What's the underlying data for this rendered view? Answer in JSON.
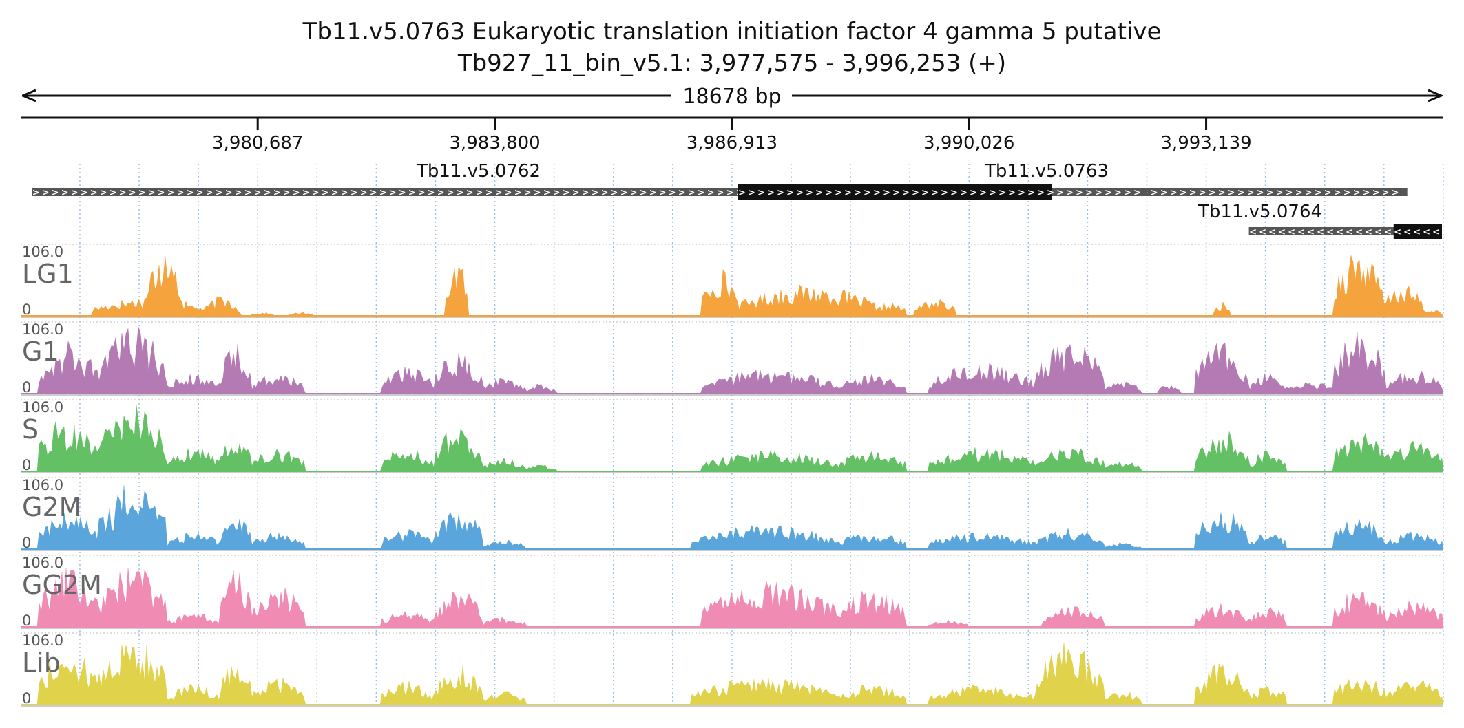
{
  "header": {
    "title": "Tb11.v5.0763  Eukaryotic translation initiation factor 4 gamma 5  putative",
    "region": "Tb927_11_bin_v5.1: 3,977,575 - 3,996,253 (+)",
    "span_label": "18678 bp"
  },
  "chart_data": {
    "type": "area",
    "x_range": [
      3977575,
      3996253
    ],
    "ticks": [
      {
        "pos": 3980687,
        "label": "3,980,687"
      },
      {
        "pos": 3983800,
        "label": "3,983,800"
      },
      {
        "pos": 3986913,
        "label": "3,986,913"
      },
      {
        "pos": 3990026,
        "label": "3,990,026"
      },
      {
        "pos": 3993139,
        "label": "3,993,139"
      }
    ],
    "genes": [
      {
        "name": "Tb11.v5.0762",
        "strand": "+",
        "start": 3977720,
        "end": 3995780,
        "cds_start": null,
        "cds_end": null,
        "row": 0
      },
      {
        "name": "Tb11.v5.0763",
        "strand": "+",
        "start": 3986990,
        "end": 3992360,
        "cds_start": 3986990,
        "cds_end": 3991110,
        "row": 0
      },
      {
        "name": "Tb11.v5.0764",
        "strand": "-",
        "start": 3993700,
        "end": 3997550,
        "cds_start": 3995600,
        "cds_end": 3997400,
        "row": 1
      }
    ],
    "tracks": [
      {
        "name": "LG1",
        "ymax_label": "106.0",
        "ymin_label": "0",
        "color": "#f5a33c",
        "regions": [
          [
            3978500,
            3980000,
            0.28
          ],
          [
            3979200,
            3979700,
            0.95
          ],
          [
            3980000,
            3980450,
            0.3
          ],
          [
            3980600,
            3980900,
            0.05
          ],
          [
            3981100,
            3981400,
            0.05
          ],
          [
            3983150,
            3983450,
            0.85
          ],
          [
            3986520,
            3987000,
            0.7
          ],
          [
            3987000,
            3988800,
            0.45
          ],
          [
            3988800,
            3989200,
            0.2
          ],
          [
            3989300,
            3989850,
            0.25
          ],
          [
            3993250,
            3993450,
            0.2
          ],
          [
            3994800,
            3995450,
            1.0
          ],
          [
            3995450,
            3996000,
            0.45
          ],
          [
            3996000,
            3996250,
            0.1
          ]
        ]
      },
      {
        "name": "G1",
        "ymax_label": "106.0",
        "ymin_label": "0",
        "color": "#b47ab4",
        "regions": [
          [
            3977800,
            3978600,
            0.75
          ],
          [
            3978600,
            3979500,
            0.98
          ],
          [
            3979500,
            3980200,
            0.3
          ],
          [
            3980200,
            3980600,
            0.75
          ],
          [
            3980600,
            3981300,
            0.3
          ],
          [
            3982300,
            3983000,
            0.4
          ],
          [
            3983000,
            3983650,
            0.6
          ],
          [
            3983650,
            3984200,
            0.25
          ],
          [
            3984200,
            3984600,
            0.15
          ],
          [
            3986520,
            3988300,
            0.35
          ],
          [
            3988300,
            3989200,
            0.3
          ],
          [
            3989500,
            3990900,
            0.45
          ],
          [
            3990900,
            3991800,
            0.8
          ],
          [
            3991800,
            3992300,
            0.2
          ],
          [
            3992500,
            3992800,
            0.15
          ],
          [
            3993000,
            3993700,
            0.75
          ],
          [
            3993700,
            3994200,
            0.3
          ],
          [
            3994200,
            3994800,
            0.2
          ],
          [
            3994800,
            3995500,
            0.9
          ],
          [
            3995500,
            3996250,
            0.35
          ]
        ]
      },
      {
        "name": "S",
        "ymax_label": "106.0",
        "ymin_label": "0",
        "color": "#64c064",
        "regions": [
          [
            3977800,
            3978600,
            0.8
          ],
          [
            3978600,
            3979500,
            1.0
          ],
          [
            3979500,
            3980200,
            0.35
          ],
          [
            3980200,
            3980600,
            0.6
          ],
          [
            3980600,
            3981300,
            0.35
          ],
          [
            3982300,
            3983000,
            0.35
          ],
          [
            3983000,
            3983650,
            0.65
          ],
          [
            3983650,
            3984200,
            0.2
          ],
          [
            3984200,
            3984600,
            0.1
          ],
          [
            3986520,
            3988300,
            0.3
          ],
          [
            3988300,
            3989200,
            0.3
          ],
          [
            3989500,
            3990900,
            0.35
          ],
          [
            3990900,
            3991800,
            0.35
          ],
          [
            3991800,
            3992300,
            0.15
          ],
          [
            3993000,
            3993700,
            0.6
          ],
          [
            3993700,
            3994200,
            0.3
          ],
          [
            3994800,
            3995500,
            0.6
          ],
          [
            3995500,
            3996250,
            0.5
          ]
        ]
      },
      {
        "name": "G2M",
        "ymax_label": "106.0",
        "ymin_label": "0",
        "color": "#5aa5dc",
        "regions": [
          [
            3977800,
            3978600,
            0.55
          ],
          [
            3978600,
            3979500,
            0.95
          ],
          [
            3979500,
            3980200,
            0.25
          ],
          [
            3980200,
            3980600,
            0.55
          ],
          [
            3980600,
            3981300,
            0.25
          ],
          [
            3982300,
            3983000,
            0.3
          ],
          [
            3983000,
            3983650,
            0.6
          ],
          [
            3983650,
            3984200,
            0.15
          ],
          [
            3986380,
            3988300,
            0.35
          ],
          [
            3988300,
            3989200,
            0.25
          ],
          [
            3989500,
            3990900,
            0.25
          ],
          [
            3990900,
            3991800,
            0.3
          ],
          [
            3991800,
            3992300,
            0.1
          ],
          [
            3993000,
            3993700,
            0.6
          ],
          [
            3993700,
            3994200,
            0.25
          ],
          [
            3994800,
            3995500,
            0.45
          ],
          [
            3995500,
            3996250,
            0.25
          ]
        ]
      },
      {
        "name": "GG2M",
        "ymax_label": "106.0",
        "ymin_label": "0",
        "color": "#f08cb4",
        "regions": [
          [
            3977800,
            3978600,
            0.85
          ],
          [
            3978600,
            3979500,
            0.9
          ],
          [
            3979500,
            3980200,
            0.2
          ],
          [
            3980200,
            3980600,
            0.85
          ],
          [
            3980600,
            3981300,
            0.6
          ],
          [
            3982300,
            3983000,
            0.25
          ],
          [
            3983000,
            3983650,
            0.55
          ],
          [
            3983650,
            3984200,
            0.15
          ],
          [
            3986520,
            3988300,
            0.65
          ],
          [
            3988300,
            3989200,
            0.55
          ],
          [
            3989500,
            3990000,
            0.1
          ],
          [
            3991000,
            3991800,
            0.3
          ],
          [
            3993000,
            3993700,
            0.35
          ],
          [
            3993700,
            3994200,
            0.3
          ],
          [
            3994800,
            3995500,
            0.55
          ],
          [
            3995500,
            3996250,
            0.4
          ]
        ]
      },
      {
        "name": "Lib",
        "ymax_label": "106.0",
        "ymin_label": "0",
        "color": "#e0d24a",
        "regions": [
          [
            3977800,
            3978600,
            0.85
          ],
          [
            3978600,
            3979500,
            1.0
          ],
          [
            3979500,
            3980200,
            0.3
          ],
          [
            3980200,
            3980600,
            0.7
          ],
          [
            3980600,
            3981300,
            0.4
          ],
          [
            3982300,
            3983000,
            0.35
          ],
          [
            3983000,
            3983650,
            0.6
          ],
          [
            3983650,
            3984200,
            0.2
          ],
          [
            3986380,
            3988300,
            0.4
          ],
          [
            3988300,
            3989200,
            0.3
          ],
          [
            3989500,
            3990900,
            0.3
          ],
          [
            3990900,
            3991800,
            0.9
          ],
          [
            3991800,
            3992300,
            0.2
          ],
          [
            3993000,
            3993700,
            0.6
          ],
          [
            3993700,
            3994200,
            0.3
          ],
          [
            3994800,
            3995500,
            0.45
          ],
          [
            3995500,
            3996250,
            0.4
          ]
        ]
      }
    ]
  }
}
